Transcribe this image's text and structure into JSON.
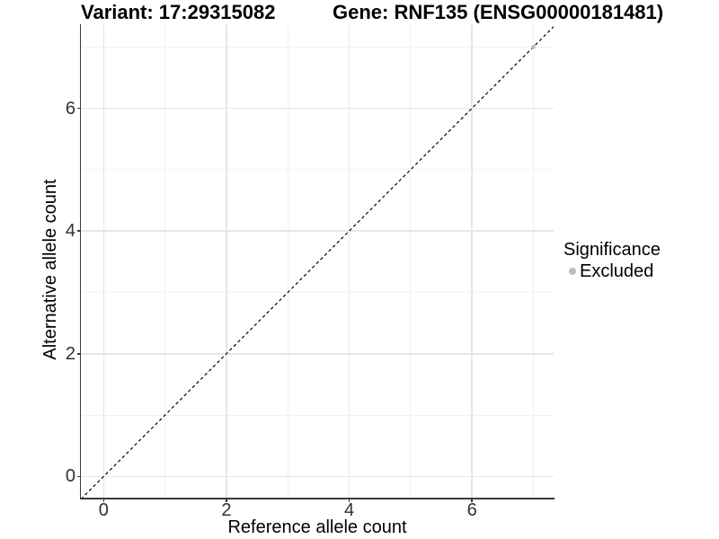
{
  "chart_data": {
    "type": "scatter",
    "title_left": "Variant: 17:29315082",
    "title_right": "Gene: RNF135 (ENSG00000181481)",
    "xlabel": "Reference allele count",
    "ylabel": "Alternative allele count",
    "xlim": [
      -0.37,
      7.33
    ],
    "ylim": [
      -0.36,
      7.37
    ],
    "x_major_ticks": [
      0,
      2,
      4,
      6
    ],
    "y_major_ticks": [
      0,
      2,
      4,
      6
    ],
    "x_minor_ticks": [
      1,
      3,
      5,
      7
    ],
    "y_minor_ticks": [
      1,
      3,
      5,
      7
    ],
    "grid": "major+minor",
    "series": [
      {
        "name": "Excluded",
        "color": "#bdbdbd",
        "points": [
          [
            7,
            7
          ]
        ]
      }
    ],
    "reference_line": {
      "slope": 1,
      "intercept": 0,
      "style": "dashed",
      "color": "#141414"
    },
    "legend": {
      "title": "Significance",
      "position": "right",
      "items": [
        {
          "label": "Excluded",
          "color": "#bdbdbd"
        }
      ]
    }
  },
  "colors": {
    "background": "#ffffff",
    "panel_background": "#ffffff",
    "grid_major": "#e6e6e6",
    "grid_minor": "#f2f2f2",
    "axis_line": "#3a3a3a",
    "tick_text": "#303030",
    "title_text": "#000000"
  }
}
